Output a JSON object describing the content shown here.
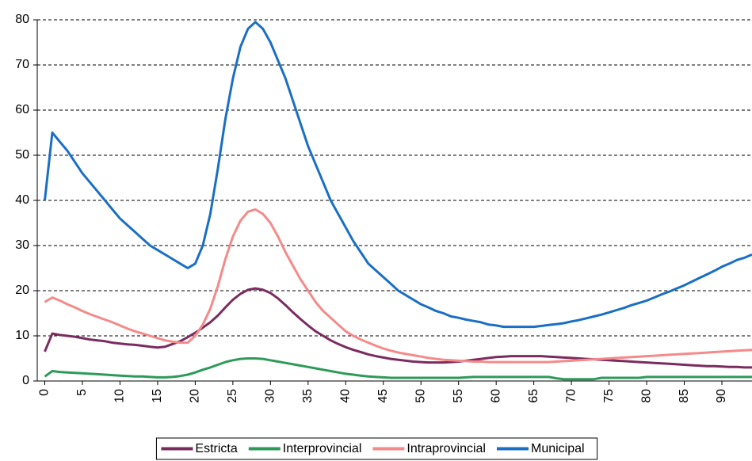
{
  "chart_data": {
    "type": "line",
    "x": [
      0,
      1,
      2,
      3,
      4,
      5,
      6,
      7,
      8,
      9,
      10,
      11,
      12,
      13,
      14,
      15,
      16,
      17,
      18,
      19,
      20,
      21,
      22,
      23,
      24,
      25,
      26,
      27,
      28,
      29,
      30,
      31,
      32,
      33,
      34,
      35,
      36,
      37,
      38,
      39,
      40,
      41,
      42,
      43,
      44,
      45,
      46,
      47,
      48,
      49,
      50,
      51,
      52,
      53,
      54,
      55,
      56,
      57,
      58,
      59,
      60,
      61,
      62,
      63,
      64,
      65,
      66,
      67,
      68,
      69,
      70,
      71,
      72,
      73,
      74,
      75,
      76,
      77,
      78,
      79,
      80,
      81,
      82,
      83,
      84,
      85,
      86,
      87,
      88,
      89,
      90,
      91,
      92,
      93,
      94
    ],
    "xlim": [
      -1,
      94
    ],
    "xticks": [
      0,
      5,
      10,
      15,
      20,
      25,
      30,
      35,
      40,
      45,
      50,
      55,
      60,
      65,
      70,
      75,
      80,
      85,
      90
    ],
    "ylim": [
      0,
      80
    ],
    "yticks": [
      0,
      10,
      20,
      30,
      40,
      50,
      60,
      70,
      80
    ],
    "grid": true,
    "legend": "bottom",
    "series": [
      {
        "name": "Estricta",
        "color": "#7b2c5f",
        "values": [
          6.5,
          10.5,
          10.2,
          10,
          9.8,
          9.5,
          9.2,
          9,
          8.8,
          8.5,
          8.3,
          8.1,
          8,
          7.8,
          7.6,
          7.4,
          7.6,
          8.2,
          8.8,
          9.7,
          10.7,
          11.8,
          13,
          14.5,
          16.3,
          18,
          19.3,
          20.2,
          20.5,
          20.2,
          19.5,
          18.3,
          16.8,
          15.2,
          13.7,
          12.3,
          11,
          10,
          9,
          8.2,
          7.5,
          6.9,
          6.4,
          5.9,
          5.5,
          5.2,
          4.9,
          4.7,
          4.5,
          4.3,
          4.2,
          4.1,
          4.1,
          4.1,
          4.2,
          4.3,
          4.5,
          4.7,
          4.9,
          5.1,
          5.3,
          5.4,
          5.5,
          5.5,
          5.5,
          5.5,
          5.5,
          5.4,
          5.3,
          5.2,
          5.1,
          5,
          4.9,
          4.8,
          4.7,
          4.6,
          4.5,
          4.4,
          4.3,
          4.2,
          4.1,
          4,
          3.9,
          3.8,
          3.7,
          3.6,
          3.5,
          3.4,
          3.3,
          3.3,
          3.2,
          3.1,
          3.1,
          3,
          3
        ]
      },
      {
        "name": "Interprovincial",
        "color": "#2e9a5a",
        "values": [
          1,
          2.2,
          2,
          1.9,
          1.8,
          1.7,
          1.6,
          1.5,
          1.4,
          1.3,
          1.2,
          1.1,
          1,
          1,
          0.9,
          0.8,
          0.8,
          0.9,
          1.1,
          1.4,
          1.9,
          2.5,
          3,
          3.6,
          4.2,
          4.6,
          4.9,
          5,
          5,
          4.9,
          4.6,
          4.3,
          4,
          3.7,
          3.4,
          3.1,
          2.8,
          2.5,
          2.2,
          1.9,
          1.6,
          1.4,
          1.2,
          1,
          0.9,
          0.8,
          0.7,
          0.7,
          0.7,
          0.7,
          0.7,
          0.7,
          0.7,
          0.7,
          0.7,
          0.7,
          0.8,
          0.9,
          0.9,
          0.9,
          0.9,
          0.9,
          0.9,
          0.9,
          0.9,
          0.9,
          0.9,
          0.9,
          0.6,
          0.4,
          0.4,
          0.4,
          0.4,
          0.4,
          0.7,
          0.7,
          0.7,
          0.7,
          0.7,
          0.7,
          0.9,
          0.9,
          0.9,
          0.9,
          0.9,
          0.9,
          0.9,
          0.9,
          0.9,
          0.9,
          0.9,
          0.9,
          0.9,
          0.9,
          0.9
        ]
      },
      {
        "name": "Intraprovincial",
        "color": "#f48a8a",
        "values": [
          17.5,
          18.5,
          17.8,
          17,
          16.3,
          15.5,
          14.8,
          14.2,
          13.6,
          13,
          12.3,
          11.6,
          11,
          10.5,
          10,
          9.5,
          9,
          8.7,
          8.5,
          8.5,
          10,
          12.5,
          16,
          21,
          27,
          32,
          35.5,
          37.5,
          38,
          37,
          35,
          32,
          28.5,
          25.5,
          22.5,
          20,
          17.5,
          15.5,
          14,
          12.5,
          11,
          10,
          9.2,
          8.5,
          7.8,
          7.2,
          6.7,
          6.3,
          6,
          5.7,
          5.4,
          5.1,
          4.9,
          4.7,
          4.6,
          4.5,
          4.4,
          4.3,
          4.3,
          4.2,
          4.2,
          4.2,
          4.2,
          4.2,
          4.2,
          4.2,
          4.2,
          4.2,
          4.3,
          4.4,
          4.5,
          4.6,
          4.7,
          4.8,
          4.9,
          5,
          5.1,
          5.2,
          5.3,
          5.4,
          5.5,
          5.6,
          5.7,
          5.8,
          5.9,
          6,
          6.1,
          6.2,
          6.3,
          6.4,
          6.5,
          6.6,
          6.7,
          6.8,
          6.9
        ]
      },
      {
        "name": "Municipal",
        "color": "#1a6fc4",
        "values": [
          40,
          55,
          53,
          51,
          48.5,
          46,
          44,
          42,
          40,
          38,
          36,
          34.5,
          33,
          31.5,
          30,
          29,
          28,
          27,
          26,
          25,
          26,
          30,
          37,
          47,
          58,
          67,
          74,
          78,
          79.5,
          78,
          75,
          71,
          67,
          62,
          57,
          52,
          48,
          44,
          40,
          37,
          34,
          31,
          28.5,
          26,
          24.5,
          23,
          21.5,
          20,
          19,
          18,
          17,
          16.3,
          15.5,
          15,
          14.3,
          14,
          13.6,
          13.3,
          13,
          12.5,
          12.3,
          12,
          12,
          12,
          12,
          12,
          12.2,
          12.4,
          12.6,
          12.8,
          13.2,
          13.5,
          13.9,
          14.3,
          14.7,
          15.2,
          15.7,
          16.2,
          16.8,
          17.3,
          17.8,
          18.5,
          19.2,
          19.8,
          20.5,
          21.2,
          22,
          22.8,
          23.6,
          24.4,
          25.3,
          26,
          26.8,
          27.3,
          28
        ]
      }
    ]
  }
}
